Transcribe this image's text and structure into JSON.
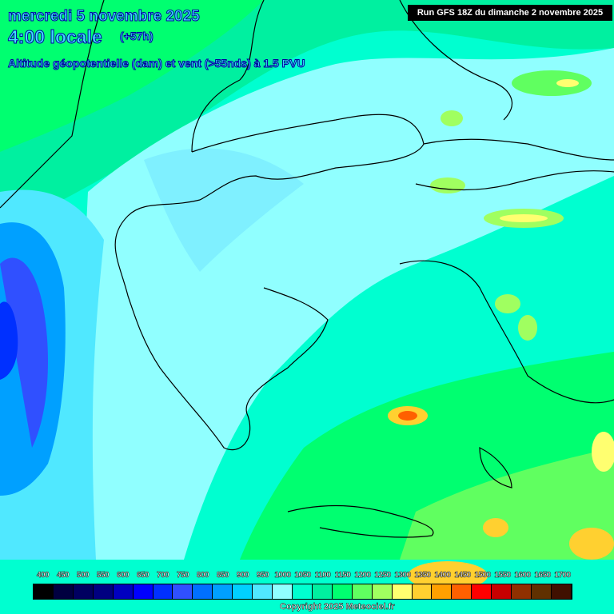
{
  "header": {
    "date": "mercredi 5 novembre 2025",
    "hour": "4:00 locale",
    "lead": "(+57h)",
    "subtitle": "Altitude géopotentielle (dam) et vent (>55nds) à 1.5 PVU",
    "run": "Run GFS 18Z du dimanche 2 novembre 2025"
  },
  "legend": {
    "labels": [
      "400",
      "450",
      "500",
      "550",
      "600",
      "650",
      "700",
      "750",
      "800",
      "850",
      "900",
      "950",
      "1000",
      "1050",
      "1100",
      "1150",
      "1200",
      "1250",
      "1300",
      "1350",
      "1400",
      "1450",
      "1500",
      "1550",
      "1600",
      "1650",
      "1700"
    ],
    "colors": [
      "#000000",
      "#000040",
      "#000060",
      "#000080",
      "#0000c0",
      "#0000ff",
      "#0030ff",
      "#3050ff",
      "#0070ff",
      "#00a0ff",
      "#00d0ff",
      "#50e8ff",
      "#90ffff",
      "#00ffd0",
      "#00f0a0",
      "#00ff70",
      "#60ff60",
      "#a0ff60",
      "#ffff70",
      "#ffd030",
      "#ffa000",
      "#ff6000",
      "#ff0000",
      "#c80000",
      "#903000",
      "#603000",
      "#401000"
    ]
  },
  "copyright": "Copyright 2025 Meteociel.fr"
}
